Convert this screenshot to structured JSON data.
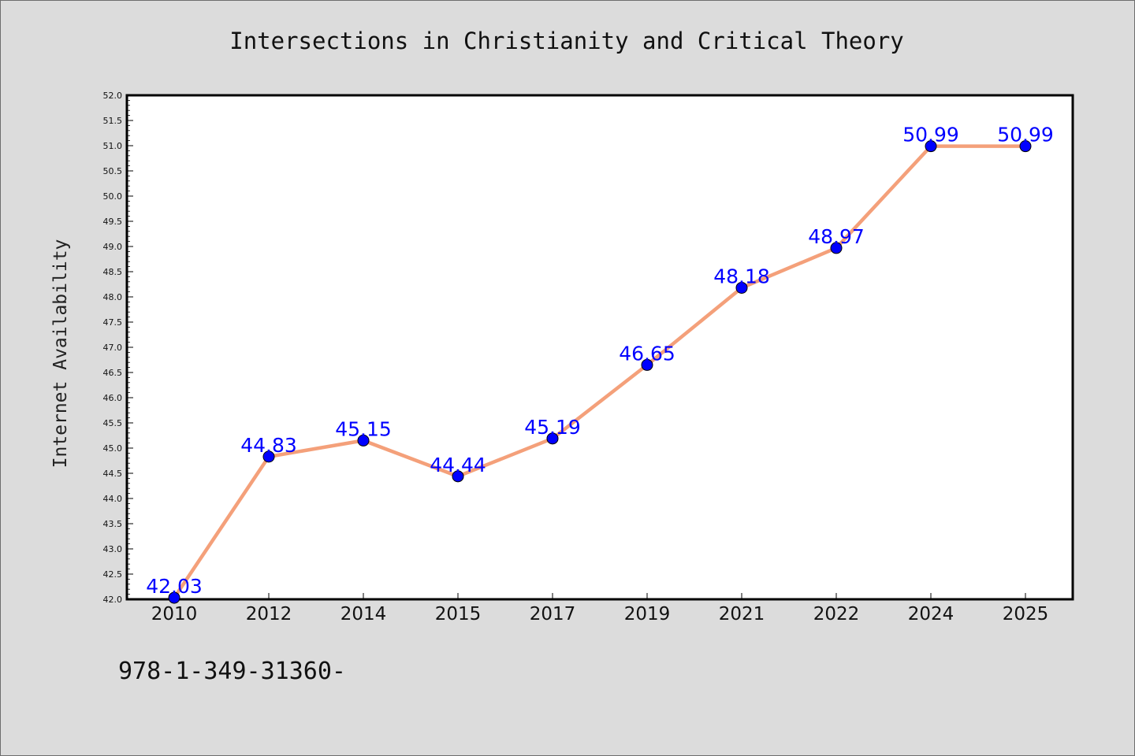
{
  "chart_data": {
    "type": "line",
    "title": "Intersections in Christianity and Critical Theory",
    "xlabel": "",
    "ylabel": "Internet Availability",
    "categories": [
      "2010",
      "2012",
      "2014",
      "2015",
      "2017",
      "2019",
      "2021",
      "2022",
      "2024",
      "2025"
    ],
    "series": [
      {
        "values": [
          42.03,
          44.83,
          45.15,
          44.44,
          45.19,
          46.65,
          48.18,
          48.97,
          50.99,
          50.99
        ],
        "labels": [
          "42.03",
          "44.83",
          "45.15",
          "44.44",
          "45.19",
          "46.65",
          "48.18",
          "48.97",
          "50.99",
          "50.99"
        ]
      }
    ],
    "ylim": [
      42.0,
      52.0
    ],
    "yticks": [
      "42.0",
      "42.5",
      "43.0",
      "43.5",
      "44.0",
      "44.5",
      "45.0",
      "45.5",
      "46.0",
      "46.5",
      "47.0",
      "47.5",
      "48.0",
      "48.5",
      "49.0",
      "49.5",
      "50.0",
      "50.5",
      "51.0",
      "51.5",
      "52.0"
    ],
    "grid": false,
    "line_color": "#f4a07a",
    "marker_color": "#0000ff",
    "label_color": "#0000ff",
    "plot_background": "#ffffff",
    "figure_background": "#dcdcdc"
  },
  "footer_text": "978-1-349-31360-"
}
